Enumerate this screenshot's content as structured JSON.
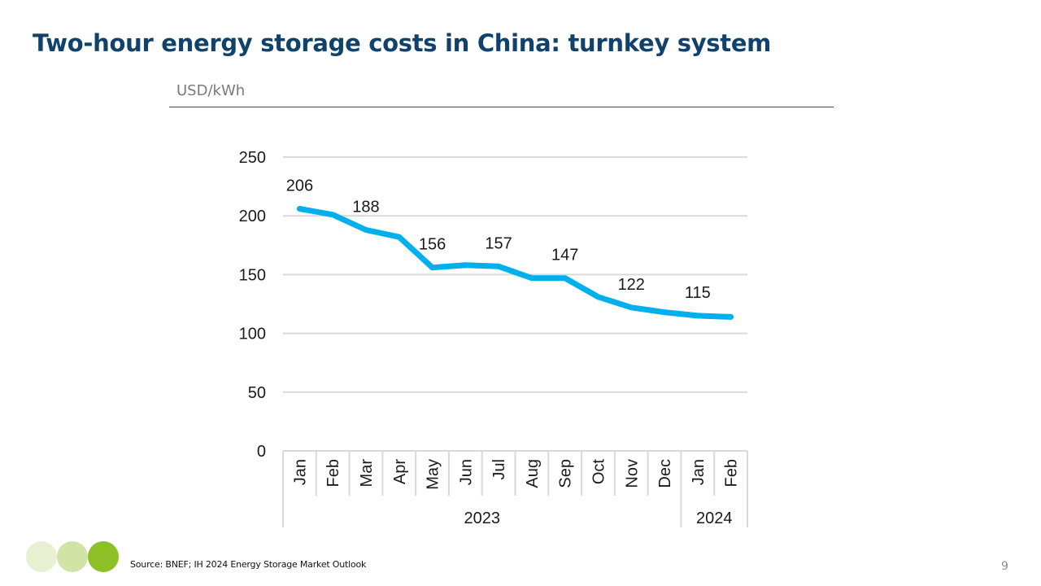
{
  "slide": {
    "title": "Two-hour energy storage costs in China: turnkey system",
    "unit": "USD/kWh",
    "source": "Source: BNEF; IH 2024 Energy Storage Market Outlook",
    "page_number": "9"
  },
  "colors": {
    "title": "#10426b",
    "line": "#00b0ec",
    "gridline": "#d9d9d9",
    "dots": [
      "#e8f0d4",
      "#d2e3a6",
      "#8dbf27"
    ]
  },
  "chart_data": {
    "type": "line",
    "title": "",
    "ylabel": "USD/kWh",
    "xlabel": "",
    "ylim": [
      0,
      250
    ],
    "yticks": [
      0,
      50,
      100,
      150,
      200,
      250
    ],
    "grid": true,
    "categories": [
      "Jan",
      "Feb",
      "Mar",
      "Apr",
      "May",
      "Jun",
      "Jul",
      "Aug",
      "Sep",
      "Oct",
      "Nov",
      "Dec",
      "Jan",
      "Feb"
    ],
    "year_groups": [
      {
        "label": "2023",
        "count": 12
      },
      {
        "label": "2024",
        "count": 2
      }
    ],
    "series": [
      {
        "values": [
          206,
          201,
          188,
          182,
          156,
          158,
          157,
          147,
          147,
          131,
          122,
          118,
          115,
          114
        ]
      }
    ],
    "data_labels": [
      {
        "index": 0,
        "text": "206"
      },
      {
        "index": 2,
        "text": "188"
      },
      {
        "index": 4,
        "text": "156"
      },
      {
        "index": 6,
        "text": "157"
      },
      {
        "index": 8,
        "text": "147"
      },
      {
        "index": 10,
        "text": "122"
      },
      {
        "index": 12,
        "text": "115"
      }
    ]
  }
}
